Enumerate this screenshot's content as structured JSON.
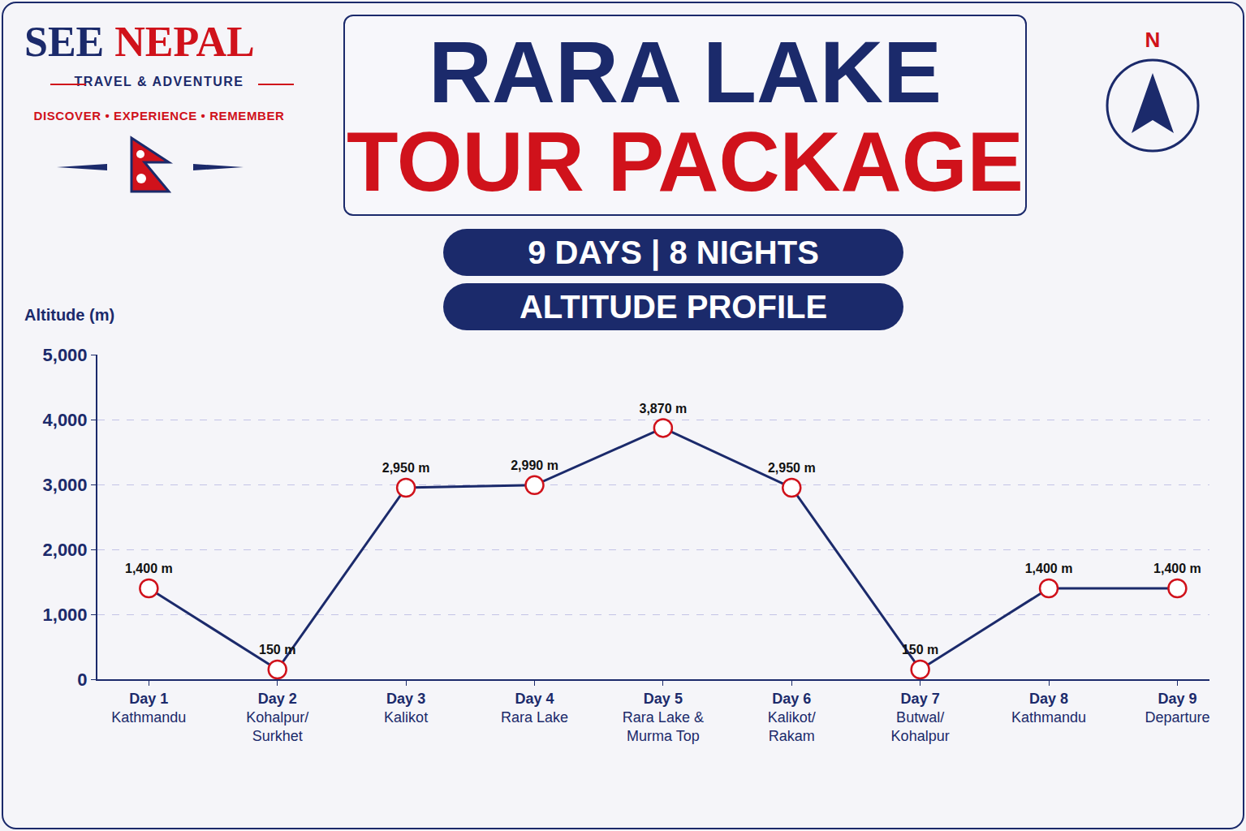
{
  "header": {
    "brand": "SEE",
    "brand_accent": "NEPAL",
    "tagline": "TRAVEL & ADVENTURE",
    "motto": "DISCOVER • EXPERIENCE • REMEMBER",
    "title_line1": "RARA LAKE",
    "title_line2": "TOUR PACKAGE",
    "duration": "9 DAYS | 8 NIGHTS",
    "subtitle": "ALTITUDE PROFILE",
    "compass": "N"
  },
  "chart_data": {
    "type": "line",
    "y_label": "Altitude (m)",
    "categories": [
      "Day 1",
      "Day 2",
      "Day 3",
      "Day 4",
      "Day 5",
      "Day 6",
      "Day 7",
      "Day 8",
      "Day 9"
    ],
    "locations": [
      "Kathmandu",
      "Kohalpur/\nSurkhet",
      "Kalikot",
      "Rara Lake",
      "Rara Lake &\nMurma Top",
      "Kalikot/\nRakam",
      "Butwal/\nKohalpur",
      "Kathmandu",
      "Departure"
    ],
    "values": [
      1400,
      150,
      2950,
      2990,
      3870,
      2950,
      150,
      1400,
      1400
    ],
    "value_labels": [
      "1,400 m",
      "150 m",
      "2,950 m",
      "2,990 m",
      "3,870 m",
      "2,950 m",
      "150 m",
      "1,400 m",
      "1,400 m"
    ],
    "color": "#1b2a6b",
    "marker": "circle",
    "data_labels": true,
    "grid": true,
    "ylim": [
      0,
      5000
    ],
    "yticks": [
      0,
      {
        "value": 1000,
        "label": "1,000"
      },
      {
        "value": 2000,
        "label": "2,000"
      },
      {
        "value": 3000,
        "label": "3,000"
      },
      {
        "value": 4000,
        "label": "4,000"
      },
      {
        "value": 5000,
        "label": "5,000"
      }
    ]
  }
}
